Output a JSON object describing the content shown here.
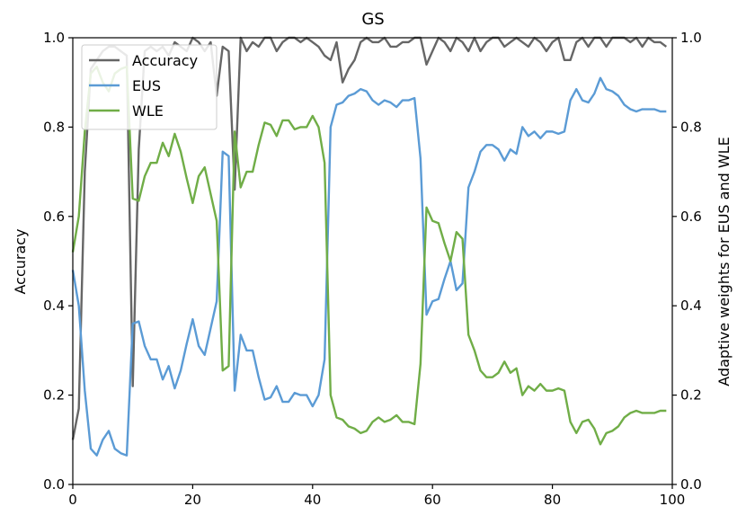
{
  "chart_data": {
    "type": "line",
    "title": "GS",
    "xlabel": "",
    "ylabel": "Accuracy",
    "ylabel_right": "Adaptive weights for EUS and WLE",
    "xlim": [
      0,
      100
    ],
    "ylim": [
      0,
      1
    ],
    "ylim_right": [
      0,
      1
    ],
    "x_ticks": [
      "0",
      "20",
      "40",
      "60",
      "80",
      "100"
    ],
    "y_ticks": [
      "0.0",
      "0.2",
      "0.4",
      "0.6",
      "0.8",
      "1.0"
    ],
    "y_ticks_right": [
      "0.0",
      "0.2",
      "0.4",
      "0.6",
      "0.8",
      "1.0"
    ],
    "grid": false,
    "legend_position": "upper-left",
    "series": [
      {
        "name": "Accuracy",
        "axis": "left",
        "color": "#666666",
        "x": [
          0,
          1,
          2,
          3,
          4,
          5,
          6,
          7,
          8,
          9,
          10,
          11,
          12,
          13,
          14,
          15,
          16,
          17,
          18,
          19,
          20,
          21,
          22,
          23,
          24,
          25,
          26,
          27,
          28,
          29,
          30,
          31,
          32,
          33,
          34,
          35,
          36,
          37,
          38,
          39,
          40,
          41,
          42,
          43,
          44,
          45,
          46,
          47,
          48,
          49,
          50,
          51,
          52,
          53,
          54,
          55,
          56,
          57,
          58,
          59,
          60,
          61,
          62,
          63,
          64,
          65,
          66,
          67,
          68,
          69,
          70,
          71,
          72,
          73,
          74,
          75,
          76,
          77,
          78,
          79,
          80,
          81,
          82,
          83,
          84,
          85,
          86,
          87,
          88,
          89,
          90,
          91,
          92,
          93,
          94,
          95,
          96,
          97,
          98,
          99
        ],
        "values": [
          0.1,
          0.17,
          0.7,
          0.93,
          0.95,
          0.97,
          0.98,
          0.98,
          0.97,
          0.96,
          0.22,
          0.75,
          0.97,
          0.98,
          0.97,
          0.98,
          0.96,
          0.99,
          0.98,
          0.97,
          1.0,
          0.99,
          0.97,
          0.99,
          0.87,
          0.98,
          0.97,
          0.66,
          1.0,
          0.97,
          0.99,
          0.98,
          1.0,
          1.0,
          0.97,
          0.99,
          1.0,
          1.0,
          0.99,
          1.0,
          0.99,
          0.98,
          0.96,
          0.95,
          0.99,
          0.9,
          0.93,
          0.95,
          0.99,
          1.0,
          0.99,
          0.99,
          1.0,
          0.98,
          0.98,
          0.99,
          0.99,
          1.0,
          1.0,
          0.94,
          0.97,
          1.0,
          0.99,
          0.97,
          1.0,
          0.99,
          0.97,
          1.0,
          0.97,
          0.99,
          1.0,
          1.0,
          0.98,
          0.99,
          1.0,
          0.99,
          0.98,
          1.0,
          0.99,
          0.97,
          0.99,
          1.0,
          0.95,
          0.95,
          0.99,
          1.0,
          0.98,
          1.0,
          1.0,
          0.98,
          1.0,
          1.0,
          1.0,
          0.99,
          1.0,
          0.98,
          1.0,
          0.99,
          0.99,
          0.98
        ]
      },
      {
        "name": "EUS",
        "axis": "right",
        "color": "#5b9bd5",
        "x": [
          0,
          1,
          2,
          3,
          4,
          5,
          6,
          7,
          8,
          9,
          10,
          11,
          12,
          13,
          14,
          15,
          16,
          17,
          18,
          19,
          20,
          21,
          22,
          23,
          24,
          25,
          26,
          27,
          28,
          29,
          30,
          31,
          32,
          33,
          34,
          35,
          36,
          37,
          38,
          39,
          40,
          41,
          42,
          43,
          44,
          45,
          46,
          47,
          48,
          49,
          50,
          51,
          52,
          53,
          54,
          55,
          56,
          57,
          58,
          59,
          60,
          61,
          62,
          63,
          64,
          65,
          66,
          67,
          68,
          69,
          70,
          71,
          72,
          73,
          74,
          75,
          76,
          77,
          78,
          79,
          80,
          81,
          82,
          83,
          84,
          85,
          86,
          87,
          88,
          89,
          90,
          91,
          92,
          93,
          94,
          95,
          96,
          97,
          98,
          99
        ],
        "values": [
          0.48,
          0.4,
          0.21,
          0.08,
          0.065,
          0.1,
          0.12,
          0.08,
          0.07,
          0.065,
          0.36,
          0.365,
          0.31,
          0.28,
          0.28,
          0.235,
          0.265,
          0.215,
          0.255,
          0.315,
          0.37,
          0.31,
          0.29,
          0.35,
          0.41,
          0.745,
          0.735,
          0.21,
          0.335,
          0.3,
          0.3,
          0.24,
          0.19,
          0.195,
          0.22,
          0.185,
          0.185,
          0.205,
          0.2,
          0.2,
          0.175,
          0.2,
          0.28,
          0.8,
          0.85,
          0.855,
          0.87,
          0.875,
          0.885,
          0.88,
          0.86,
          0.85,
          0.86,
          0.855,
          0.845,
          0.86,
          0.86,
          0.865,
          0.73,
          0.38,
          0.41,
          0.415,
          0.46,
          0.5,
          0.435,
          0.45,
          0.665,
          0.7,
          0.745,
          0.76,
          0.76,
          0.75,
          0.725,
          0.75,
          0.74,
          0.8,
          0.78,
          0.79,
          0.775,
          0.79,
          0.79,
          0.785,
          0.79,
          0.86,
          0.885,
          0.86,
          0.855,
          0.875,
          0.91,
          0.885,
          0.88,
          0.87,
          0.85,
          0.84,
          0.835,
          0.84,
          0.84,
          0.84,
          0.835,
          0.835
        ]
      },
      {
        "name": "WLE",
        "axis": "right",
        "color": "#70ad47",
        "x": [
          0,
          1,
          2,
          3,
          4,
          5,
          6,
          7,
          8,
          9,
          10,
          11,
          12,
          13,
          14,
          15,
          16,
          17,
          18,
          19,
          20,
          21,
          22,
          23,
          24,
          25,
          26,
          27,
          28,
          29,
          30,
          31,
          32,
          33,
          34,
          35,
          36,
          37,
          38,
          39,
          40,
          41,
          42,
          43,
          44,
          45,
          46,
          47,
          48,
          49,
          50,
          51,
          52,
          53,
          54,
          55,
          56,
          57,
          58,
          59,
          60,
          61,
          62,
          63,
          64,
          65,
          66,
          67,
          68,
          69,
          70,
          71,
          72,
          73,
          74,
          75,
          76,
          77,
          78,
          79,
          80,
          81,
          82,
          83,
          84,
          85,
          86,
          87,
          88,
          89,
          90,
          91,
          92,
          93,
          94,
          95,
          96,
          97,
          98,
          99
        ],
        "values": [
          0.52,
          0.6,
          0.79,
          0.92,
          0.935,
          0.9,
          0.88,
          0.92,
          0.93,
          0.935,
          0.64,
          0.635,
          0.69,
          0.72,
          0.72,
          0.765,
          0.735,
          0.785,
          0.745,
          0.685,
          0.63,
          0.69,
          0.71,
          0.65,
          0.59,
          0.255,
          0.265,
          0.79,
          0.665,
          0.7,
          0.7,
          0.76,
          0.81,
          0.805,
          0.78,
          0.815,
          0.815,
          0.795,
          0.8,
          0.8,
          0.825,
          0.8,
          0.72,
          0.2,
          0.15,
          0.145,
          0.13,
          0.125,
          0.115,
          0.12,
          0.14,
          0.15,
          0.14,
          0.145,
          0.155,
          0.14,
          0.14,
          0.135,
          0.27,
          0.62,
          0.59,
          0.585,
          0.54,
          0.5,
          0.565,
          0.55,
          0.335,
          0.3,
          0.255,
          0.24,
          0.24,
          0.25,
          0.275,
          0.25,
          0.26,
          0.2,
          0.22,
          0.21,
          0.225,
          0.21,
          0.21,
          0.215,
          0.21,
          0.14,
          0.115,
          0.14,
          0.145,
          0.125,
          0.09,
          0.115,
          0.12,
          0.13,
          0.15,
          0.16,
          0.165,
          0.16,
          0.16,
          0.16,
          0.165,
          0.165
        ]
      }
    ]
  }
}
